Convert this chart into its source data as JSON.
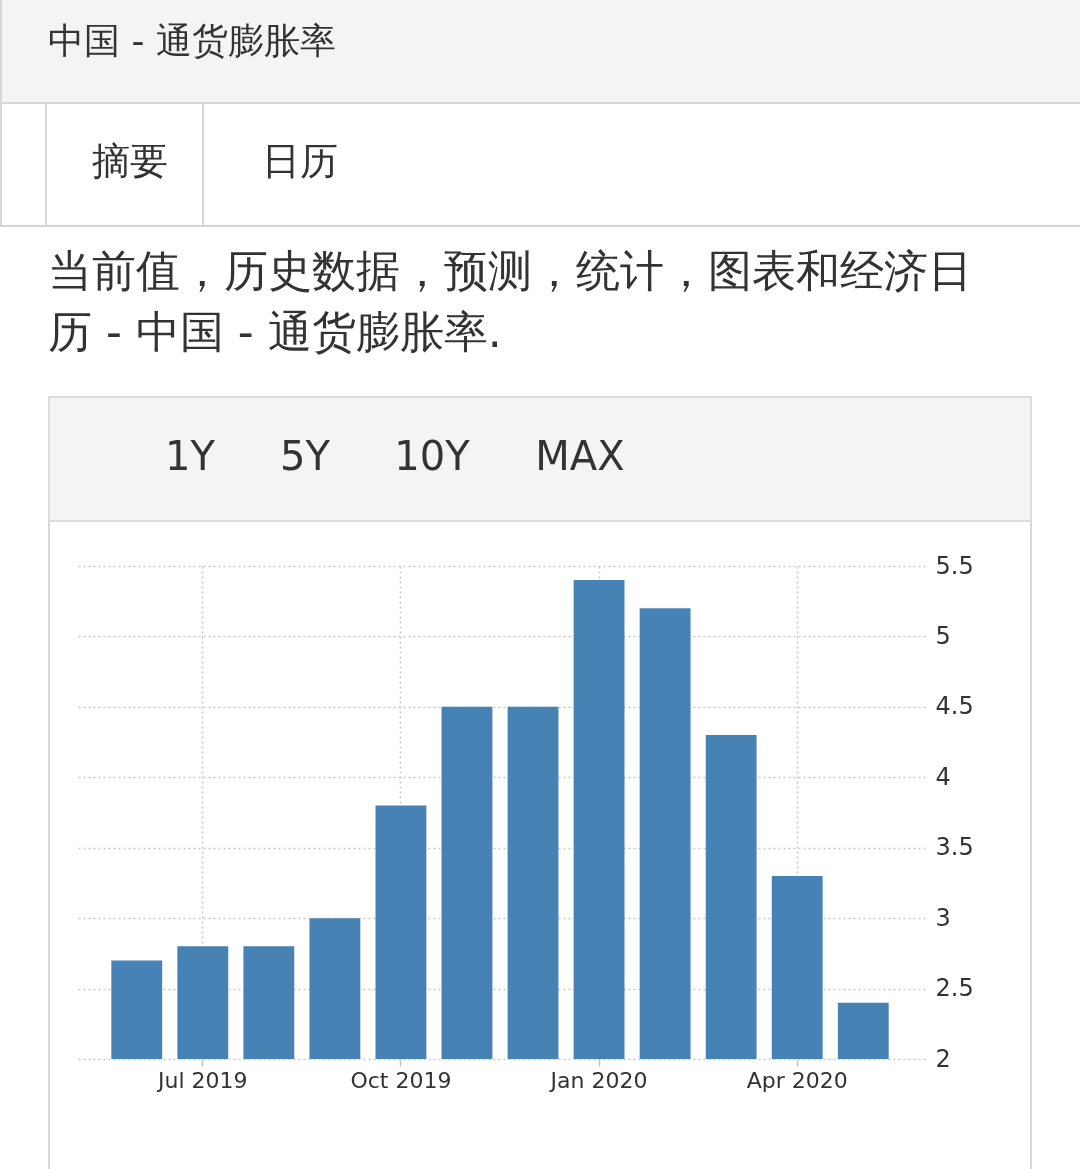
{
  "chart_data": {
    "type": "bar",
    "title": "中国 - 通货膨胀率",
    "subtitle": "当前值，历史数据，预测，统计，图表和经济日历 - 中国 - 通货膨胀率.",
    "annotations": [
      "摘要",
      "日历",
      "1Y",
      "5Y",
      "10Y",
      "MAX"
    ],
    "categories": [
      null,
      "Jul 2019",
      null,
      null,
      "Oct 2019",
      null,
      null,
      "Jan 2020",
      null,
      null,
      "Apr 2020",
      null
    ],
    "values": [
      2.7,
      2.8,
      2.8,
      3.0,
      3.8,
      4.5,
      4.5,
      5.4,
      5.2,
      4.3,
      3.3,
      2.4
    ],
    "color": "#4682b4",
    "ylim": [
      2,
      5.5
    ],
    "yticks": [
      2,
      2.5,
      3,
      3.5,
      4,
      4.5,
      5,
      5.5
    ],
    "grid": true
  }
}
